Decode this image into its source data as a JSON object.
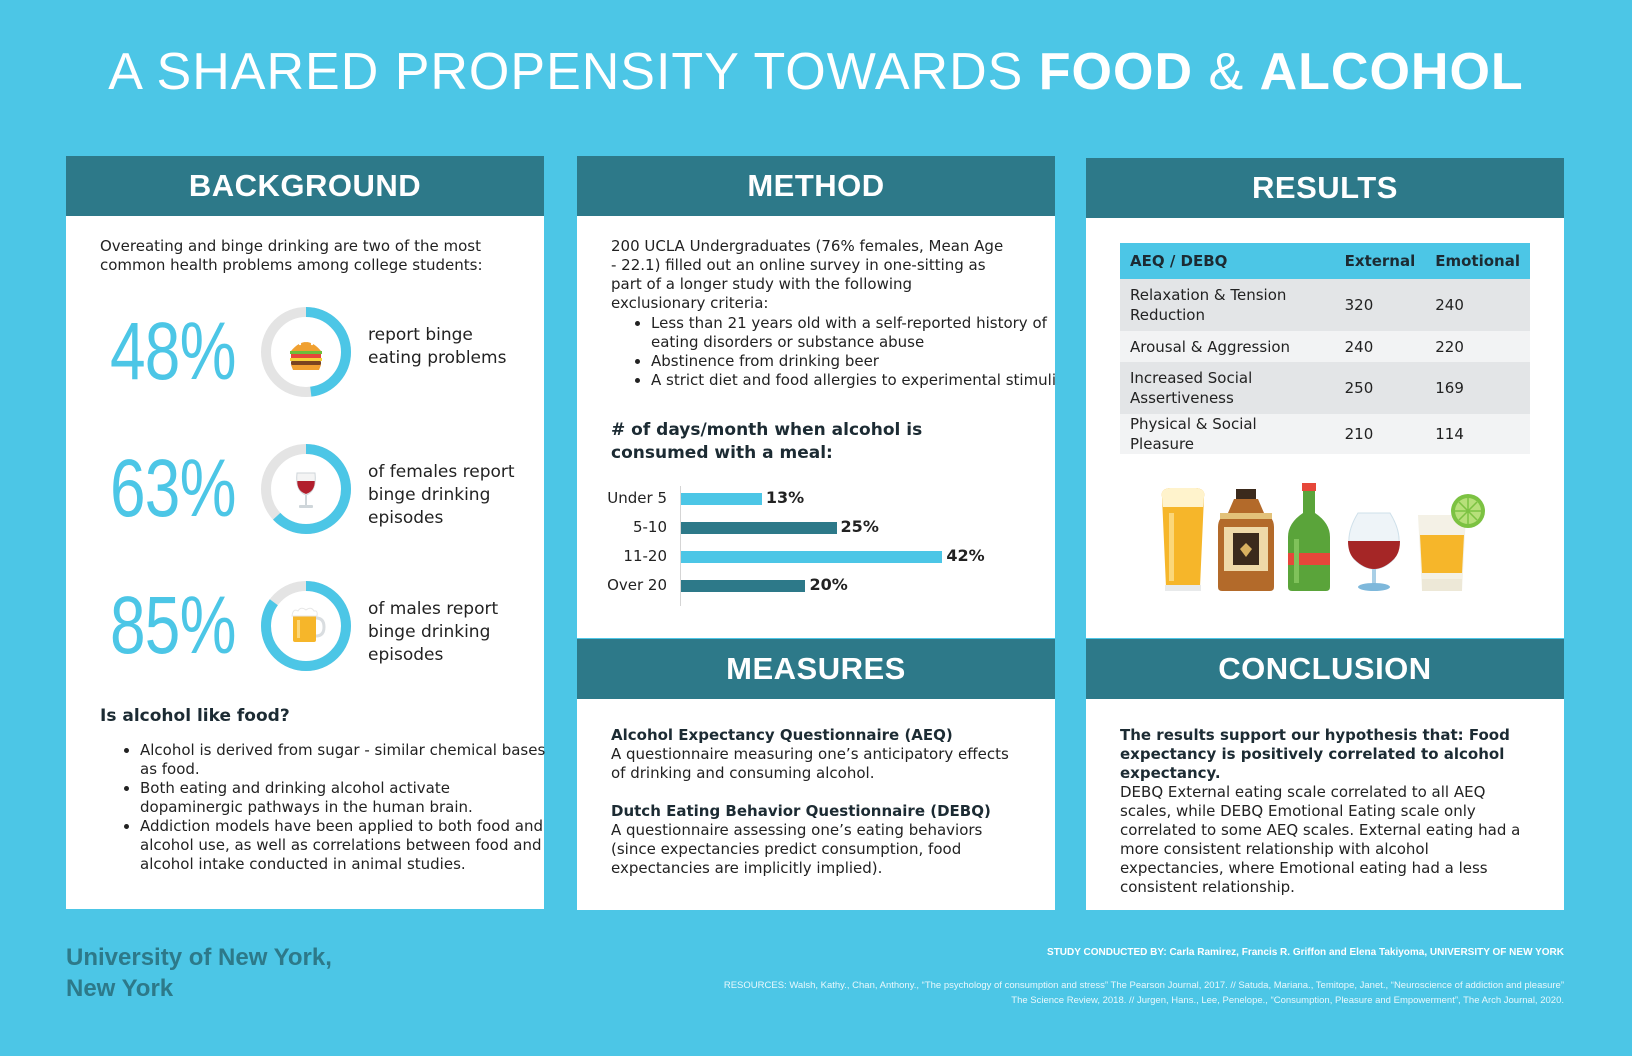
{
  "title": {
    "prefix": "A SHARED PROPENSITY TOWARDS",
    "food": "FOOD",
    "amp": "&",
    "alcohol": "ALCOHOL"
  },
  "colors": {
    "background": "#4cc6e6",
    "header": "#2d7989",
    "accent": "#4cc6e6",
    "dark_bar": "#2d7989",
    "ring_track": "#e4e4e4"
  },
  "background": {
    "heading": "BACKGROUND",
    "intro": "Overeating and binge drinking are two of the most common health problems among college students:",
    "stats": [
      {
        "value": "48%",
        "percent": 48,
        "icon": "burger-icon",
        "line1": "report binge",
        "line2": "eating problems",
        "line3": ""
      },
      {
        "value": "63%",
        "percent": 63,
        "icon": "wine-glass-icon",
        "line1": "of females report",
        "line2": "binge drinking",
        "line3": "episodes"
      },
      {
        "value": "85%",
        "percent": 85,
        "icon": "beer-mug-icon",
        "line1": "of males report",
        "line2": "binge drinking",
        "line3": "episodes"
      }
    ],
    "question": "Is alcohol like food?",
    "bullets": [
      "Alcohol is derived from sugar - similar chemical bases as food.",
      "Both eating and drinking alcohol activate dopaminergic pathways in the human brain.",
      "Addiction models have been applied to both food and alcohol use, as well as correlations between food and alcohol intake conducted in animal studies."
    ]
  },
  "method": {
    "heading": "METHOD",
    "intro": "200 UCLA Undergraduates (76% females, Mean Age - 22.1) filled out an online survey in one-sitting as part of a longer study with the following exclusionary criteria:",
    "bullets": [
      "Less than 21 years old with a self-reported history of eating disorders or substance abuse",
      "Abstinence from drinking beer",
      "A strict diet and food allergies to experimental stimuli"
    ],
    "chart_title": "# of days/month when alcohol is consumed with a meal:"
  },
  "chart_data": {
    "type": "bar",
    "orientation": "horizontal",
    "categories": [
      "Under 5",
      "5-10",
      "11-20",
      "Over 20"
    ],
    "values": [
      13,
      25,
      42,
      20
    ],
    "labels": [
      "13%",
      "25%",
      "42%",
      "20%"
    ],
    "colors": [
      "#4cc6e6",
      "#2d7989",
      "#4cc6e6",
      "#2d7989"
    ],
    "xlim": [
      0,
      45
    ],
    "grid": false
  },
  "measures": {
    "heading": "MEASURES",
    "items": [
      {
        "title": "Alcohol Expectancy Questionnaire (AEQ)",
        "text": "A questionnaire measuring one’s anticipatory effects of drinking and consuming alcohol."
      },
      {
        "title": "Dutch Eating Behavior Questionnaire (DEBQ)",
        "text": "A questionnaire assessing one’s eating behaviors (since expectancies predict consumption, food expectancies are implicitly implied)."
      }
    ]
  },
  "results": {
    "heading": "RESULTS",
    "columns": [
      "AEQ / DEBQ",
      "External",
      "Emotional"
    ],
    "rows": [
      {
        "label": "Relaxation & Tension Reduction",
        "external": "320",
        "emotional": "240"
      },
      {
        "label": "Arousal & Aggression",
        "external": "240",
        "emotional": "220"
      },
      {
        "label": "Increased Social Assertiveness",
        "external": "250",
        "emotional": "169"
      },
      {
        "label": "Physical & Social Pleasure",
        "external": "210",
        "emotional": "114"
      }
    ],
    "drinks": [
      "beer-glass-icon",
      "whiskey-bottle-icon",
      "green-bottle-icon",
      "brandy-glass-icon",
      "cocktail-lime-icon"
    ]
  },
  "conclusion": {
    "heading": "CONCLUSION",
    "bold_text": "The results support our hypothesis that: Food expectancy is positively correlated to alcohol expectancy.",
    "text": "DEBQ External eating scale correlated to all AEQ scales, while DEBQ Emotional Eating scale only correlated to some AEQ scales. External eating had a more consistent relationship with alcohol expectancies, where Emotional eating had a less consistent relationship."
  },
  "footer": {
    "university_line1": "University of New York,",
    "university_line2": "New York",
    "credit_label": "STUDY CONDUCTED BY:",
    "credit_names": "Carla Ramirez, Francis R. Griffon and Elena Takiyoma, UNIVERSITY OF NEW YORK",
    "resources_line1": "RESOURCES: Walsh, Kathy., Chan, Anthony., “The psychology of consumption and stress” The Pearson Journal, 2017. // Satuda, Mariana., Temitope, Janet., “Neuroscience of addiction and pleasure”",
    "resources_line2": "The Science Review, 2018. // Jurgen, Hans., Lee, Penelope., “Consumption, Pleasure and Empowerment”, The Arch Journal, 2020."
  }
}
